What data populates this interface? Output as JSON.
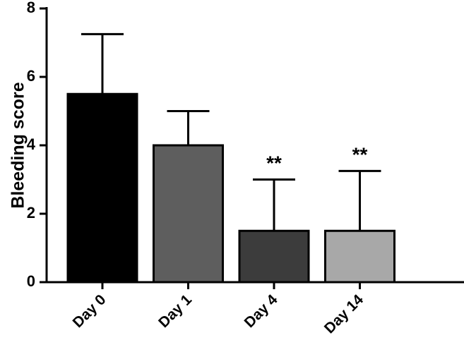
{
  "chart_data": {
    "type": "bar",
    "ylabel": "Bleeding score",
    "xlabel": "",
    "ylim": [
      0,
      8
    ],
    "yticks": [
      0,
      2,
      4,
      6,
      8
    ],
    "grid": false,
    "categories": [
      "Day 0",
      "Day 1",
      "Day 4",
      "Day 14"
    ],
    "values": [
      5.5,
      4.0,
      1.5,
      1.5
    ],
    "error_upper": [
      7.25,
      5.0,
      3.0,
      3.25
    ],
    "colors": [
      "#000000",
      "#5e5e5e",
      "#3c3c3c",
      "#a8a8a8"
    ],
    "significance": [
      "",
      "",
      "**",
      "**"
    ]
  }
}
